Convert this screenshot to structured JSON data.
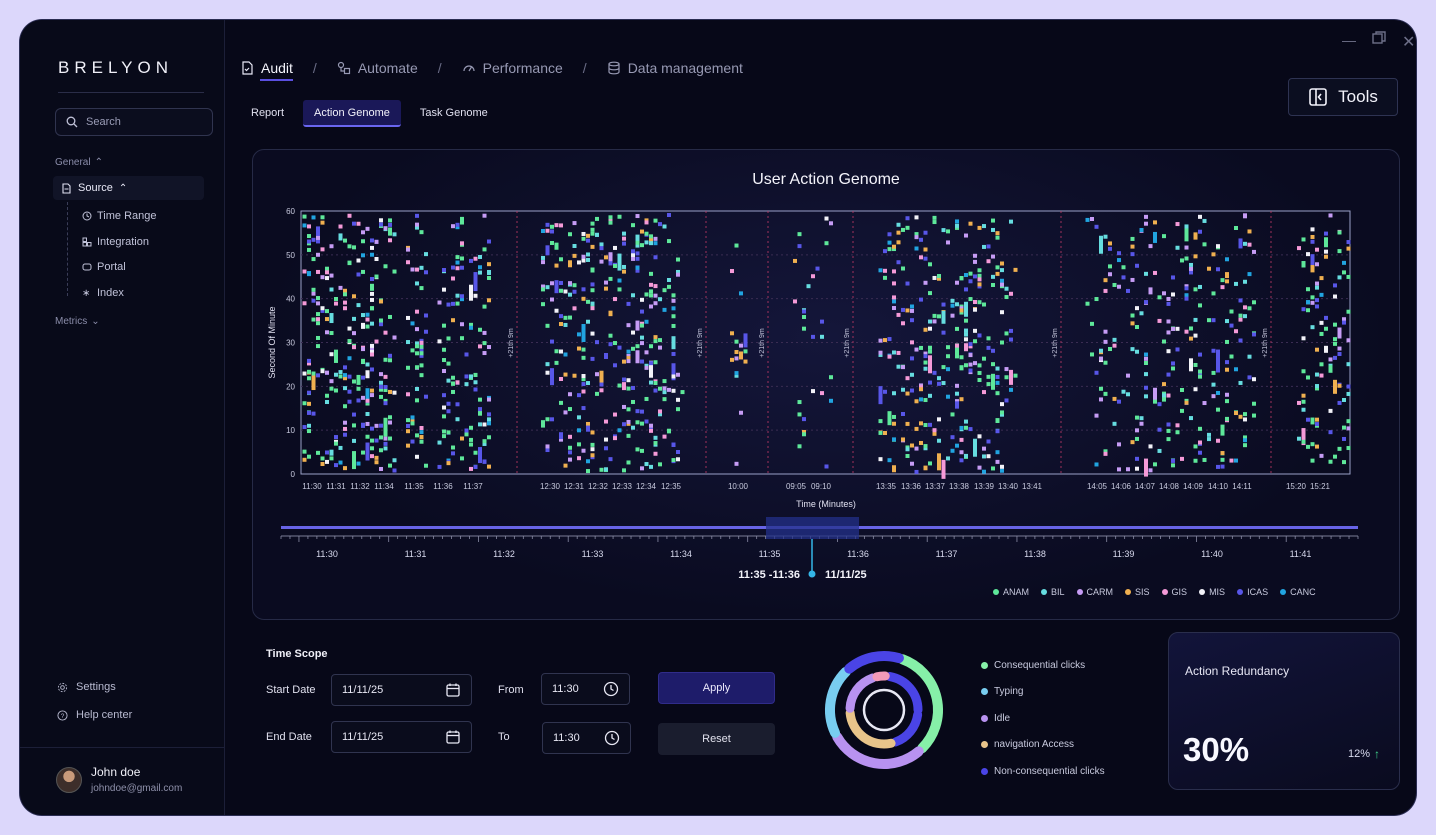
{
  "brand": "BRELYON",
  "sidebar": {
    "search_placeholder": "Search",
    "section_general": "General",
    "source_label": "Source",
    "sub_items": [
      "Time Range",
      "Integration",
      "Portal",
      "Index"
    ],
    "section_metrics": "Metrics",
    "settings_label": "Settings",
    "help_label": "Help center",
    "user": {
      "name": "John doe",
      "email": "johndoe@gmail.com"
    }
  },
  "nav": {
    "items": [
      "Audit",
      "Automate",
      "Performance",
      "Data management"
    ],
    "separator": "/",
    "active": "Audit"
  },
  "subtabs": [
    "Report",
    "Action Genome",
    "Task Genome"
  ],
  "tools_label": "Tools",
  "chart_data": {
    "type": "scatter",
    "title": "User Action Genome",
    "xlabel": "Time (Minutes)",
    "ylabel": "Second Of Minute",
    "ylim": [
      0,
      60
    ],
    "y_ticks": [
      "0",
      "10",
      "20",
      "30",
      "40",
      "50",
      "60"
    ],
    "x_tick_labels": [
      "11:30",
      "11:31",
      "11:32",
      "11:34",
      "11:35",
      "11:36",
      "11:37",
      "12:30",
      "12:31",
      "12:32",
      "12:33",
      "12:34",
      "12:35",
      "10:00",
      "09:05",
      "09:10",
      "13:35",
      "13:36",
      "13:37",
      "13:38",
      "13:39",
      "13:40",
      "13:41",
      "14:05",
      "14:06",
      "14:07",
      "14:08",
      "14:09",
      "14:10",
      "14:11",
      "15:20",
      "15:21"
    ],
    "gap_annotations": [
      "+21th 9m",
      "+21th 9m",
      "+21th 9m",
      "+21th 9m",
      "+21th 9m",
      "+21th 9m"
    ],
    "series": [
      {
        "name": "ANAM",
        "color": "#5ee89a"
      },
      {
        "name": "BIL",
        "color": "#66dde0"
      },
      {
        "name": "CARM",
        "color": "#c69cf5"
      },
      {
        "name": "SIS",
        "color": "#f0b050"
      },
      {
        "name": "GIS",
        "color": "#f59ad8"
      },
      {
        "name": "MIS",
        "color": "#f2f2f8"
      },
      {
        "name": "ICAS",
        "color": "#5856e8"
      },
      {
        "name": "CANC",
        "color": "#21a4e0"
      }
    ]
  },
  "timeline": {
    "ticks": [
      "11:30",
      "11:31",
      "11:32",
      "11:33",
      "11:34",
      "11:35",
      "11:36",
      "11:37",
      "11:38",
      "11:39",
      "11:40",
      "11:41"
    ],
    "selection_range": "11:35 -11:36",
    "selection_date": "11/11/25"
  },
  "time_scope": {
    "title": "Time Scope",
    "start_label": "Start Date",
    "start_value": "11/11/25",
    "end_label": "End Date",
    "end_value": "11/11/25",
    "from_label": "From",
    "from_value": "11:30",
    "to_label": "To",
    "to_value": "11:30",
    "apply_label": "Apply",
    "reset_label": "Reset"
  },
  "donut": {
    "items": [
      {
        "label": "Consequential clicks",
        "color": "#86f0a8"
      },
      {
        "label": "Typing",
        "color": "#78cdf0"
      },
      {
        "label": "Idle",
        "color": "#b892f0"
      },
      {
        "label": "navigation Access",
        "color": "#e8c48a"
      },
      {
        "label": "Non-consequential clicks",
        "color": "#4a44e6"
      }
    ]
  },
  "redundancy": {
    "title": "Action Redundancy",
    "value": "30%",
    "change": "12%",
    "arrow": "↑"
  }
}
